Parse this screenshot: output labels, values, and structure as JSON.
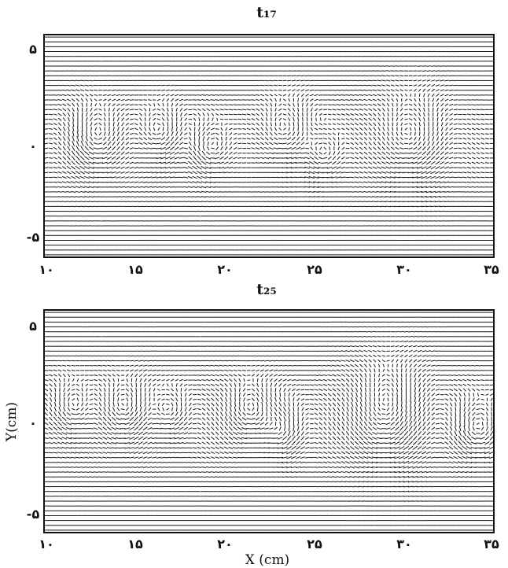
{
  "chart_data": [
    {
      "type": "quiver",
      "title": "t₁₇",
      "xlabel": "",
      "ylabel": "",
      "xlim": [
        10,
        35
      ],
      "ylim": [
        -6,
        6
      ],
      "x_ticks": [
        10,
        15,
        20,
        25,
        30,
        35
      ],
      "x_tick_labels": [
        "۱۰",
        "۱۵",
        "۲۰",
        "۲۵",
        "۳۰",
        "۳۵"
      ],
      "y_ticks": [
        5,
        0,
        -5
      ],
      "y_tick_labels": [
        "۵",
        "۰",
        "-۵"
      ],
      "grid_nx": 100,
      "grid_ny": 46,
      "vortices": [
        {
          "x": 12.8,
          "y": 0.4,
          "rx": 1.3,
          "ry": 1.8
        },
        {
          "x": 16.5,
          "y": 0.6,
          "rx": 1.2,
          "ry": 1.6
        },
        {
          "x": 19.2,
          "y": -0.2,
          "rx": 1.0,
          "ry": 1.4
        },
        {
          "x": 23.5,
          "y": 0.6,
          "rx": 1.4,
          "ry": 2.0
        },
        {
          "x": 25.5,
          "y": -0.6,
          "rx": 1.0,
          "ry": 1.5
        },
        {
          "x": 30.5,
          "y": 0.2,
          "rx": 1.8,
          "ry": 2.6
        }
      ]
    },
    {
      "type": "quiver",
      "title": "t₂₅",
      "xlabel": "X (cm)",
      "ylabel": "Y(cm)",
      "xlim": [
        10,
        35
      ],
      "ylim": [
        -6,
        6
      ],
      "x_ticks": [
        10,
        15,
        20,
        25,
        30,
        35
      ],
      "x_tick_labels": [
        "۱۰",
        "۱۵",
        "۲۰",
        "۲۵",
        "۳۰",
        "۳۵"
      ],
      "y_ticks": [
        5,
        0,
        -5
      ],
      "y_tick_labels": [
        "۵",
        "۰",
        "-۵"
      ],
      "grid_nx": 100,
      "grid_ny": 46,
      "vortices": [
        {
          "x": 11.5,
          "y": 0.6,
          "rx": 1.1,
          "ry": 1.6
        },
        {
          "x": 14.5,
          "y": 0.6,
          "rx": 1.2,
          "ry": 1.6
        },
        {
          "x": 17.0,
          "y": 0.4,
          "rx": 1.0,
          "ry": 1.4
        },
        {
          "x": 21.5,
          "y": 0.5,
          "rx": 1.2,
          "ry": 1.6
        },
        {
          "x": 23.2,
          "y": -0.6,
          "rx": 1.0,
          "ry": 1.5
        },
        {
          "x": 29.2,
          "y": 0.4,
          "rx": 1.8,
          "ry": 2.8
        },
        {
          "x": 34.0,
          "y": -0.5,
          "rx": 1.1,
          "ry": 1.5
        }
      ]
    }
  ]
}
